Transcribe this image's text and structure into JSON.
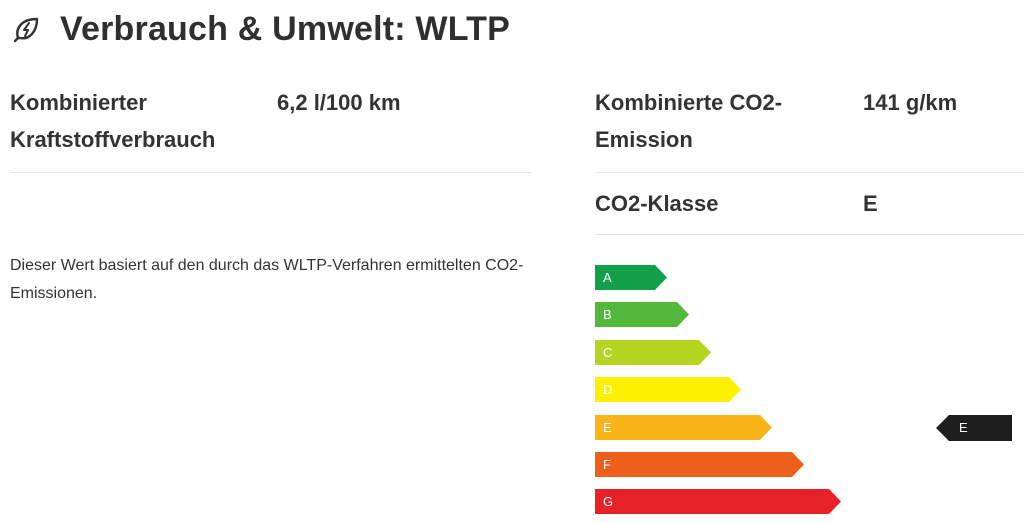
{
  "header": {
    "title": "Verbrauch & Umwelt: WLTP",
    "icon": "leaf-bolt-icon"
  },
  "left": {
    "fuel_label_line1": "Kombinierter",
    "fuel_label_line2": "Kraftstoffverbrauch",
    "fuel_value": "6,2 l/100 km",
    "note": "Dieser Wert basiert auf den durch das WLTP-Verfahren ermittelten CO2-Emissionen."
  },
  "right": {
    "co2_label_line1": "Kombinierte CO2-",
    "co2_label_line2": "Emission",
    "co2_value": "141 g/km",
    "class_label": "CO2-Klasse",
    "class_value": "E"
  },
  "energy_scale": {
    "classes": [
      {
        "letter": "A",
        "color": "#12a04a"
      },
      {
        "letter": "B",
        "color": "#52b93c"
      },
      {
        "letter": "C",
        "color": "#b5d521"
      },
      {
        "letter": "D",
        "color": "#fcf200"
      },
      {
        "letter": "E",
        "color": "#f9b417"
      },
      {
        "letter": "F",
        "color": "#ef5f1c"
      },
      {
        "letter": "G",
        "color": "#e72128"
      }
    ],
    "selected": "E",
    "marker_color": "#1e1e1e"
  }
}
